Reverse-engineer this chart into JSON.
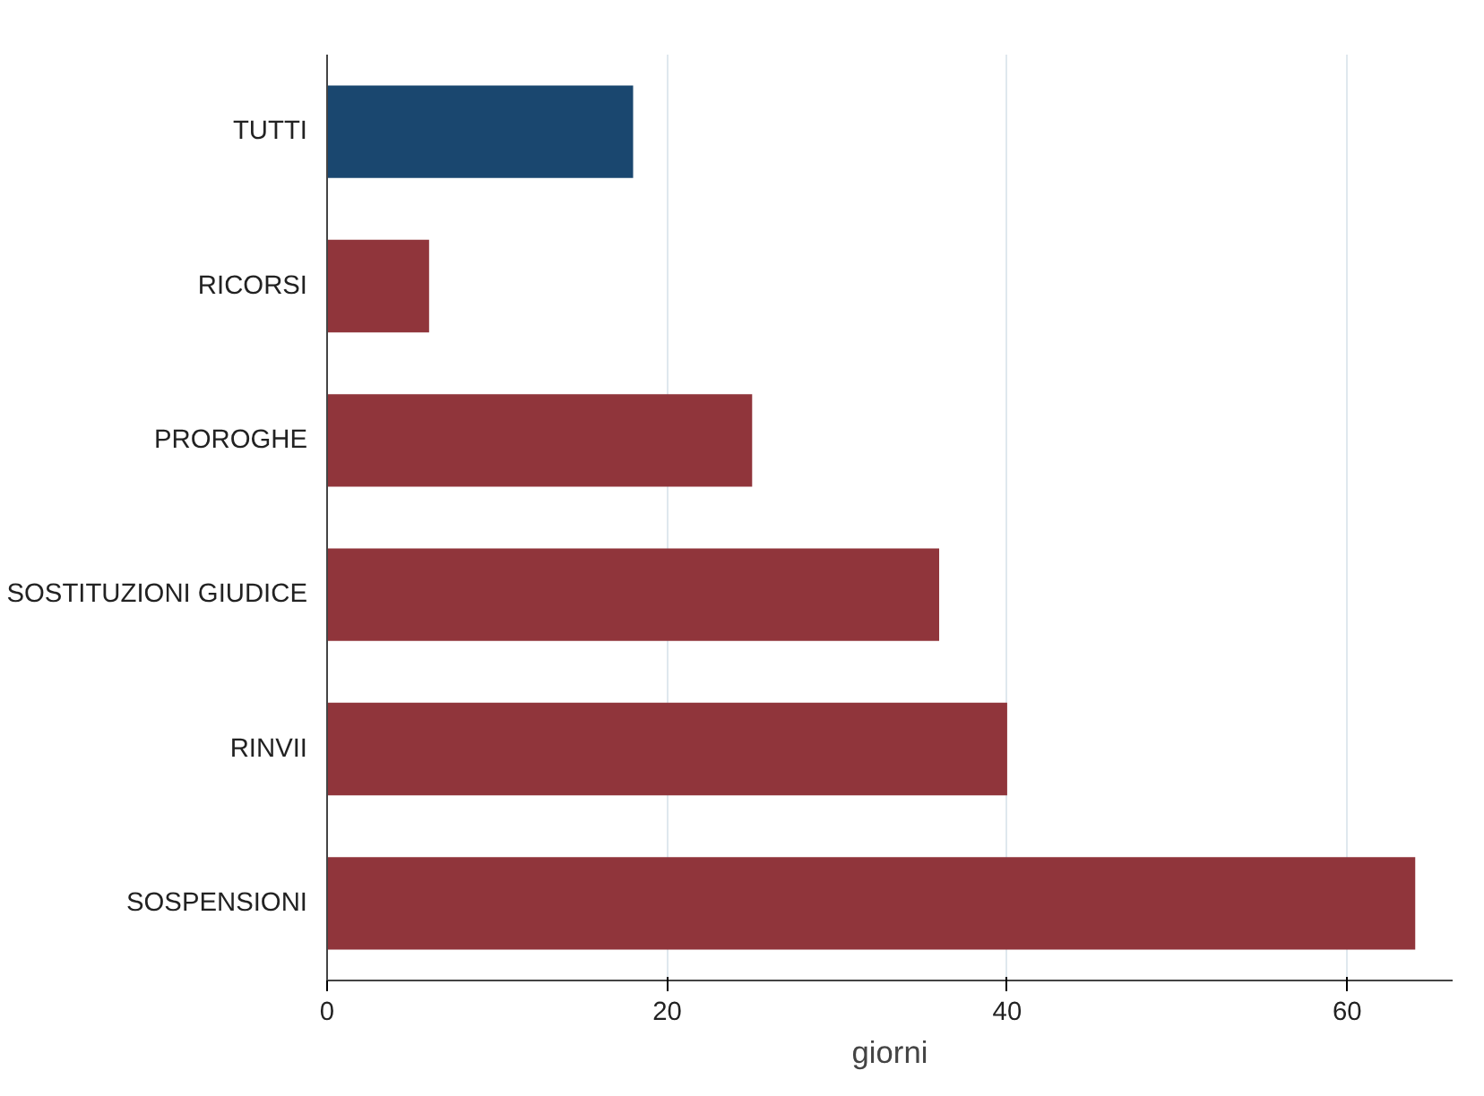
{
  "chart_data": {
    "type": "bar",
    "orientation": "horizontal",
    "xlabel": "giorni",
    "categories": [
      "TUTTI",
      "RICORSI",
      "PROROGHE",
      "SOSTITUZIONI GIUDICE",
      "RINVII",
      "SOSPENSIONI"
    ],
    "values": [
      18,
      6,
      25,
      36,
      40,
      64
    ],
    "colors": [
      "#1a476f",
      "#90353b",
      "#90353b",
      "#90353b",
      "#90353b",
      "#90353b"
    ],
    "xlim": [
      0,
      66.2
    ],
    "xticks": [
      0,
      20,
      40,
      60
    ],
    "grid": "x"
  }
}
